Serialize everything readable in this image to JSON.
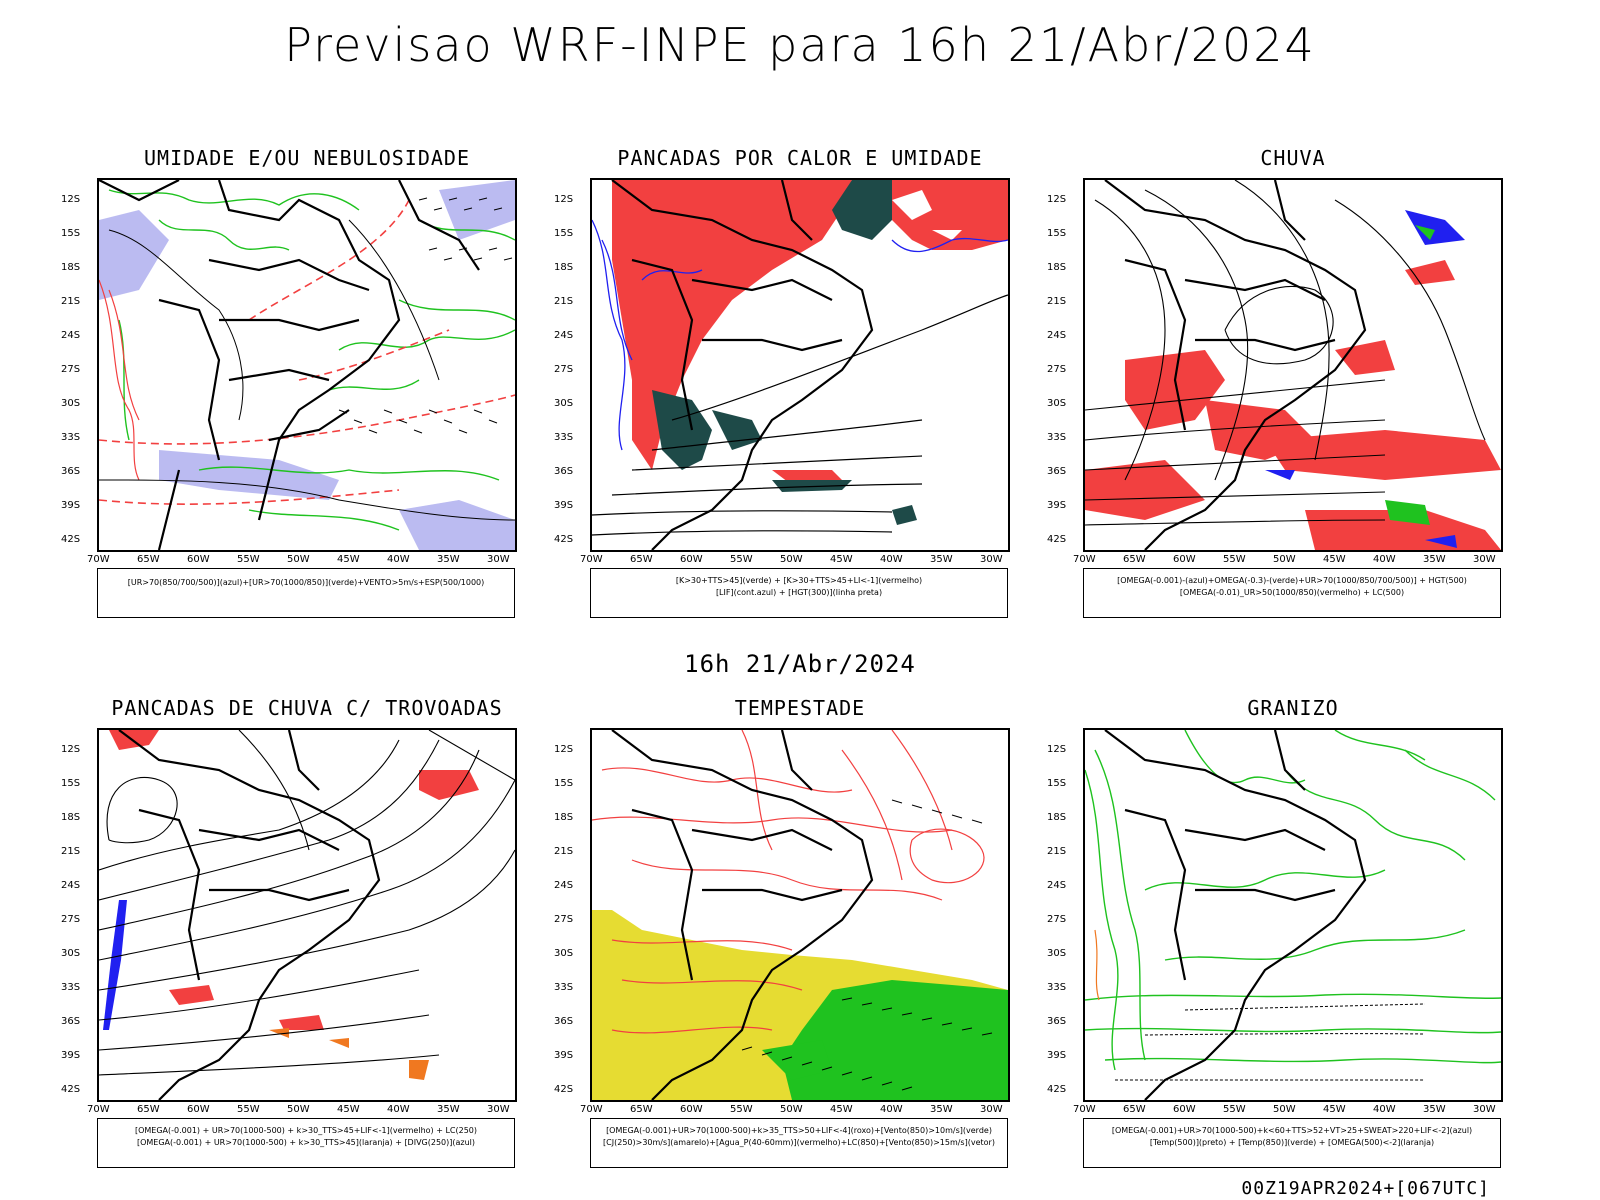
{
  "title": "Previsao WRF-INPE  para 16h 21/Abr/2024",
  "mid_date": "16h 21/Abr/2024",
  "footer_stamp": "00Z19APR2024+[067UTC]",
  "lat_labels": [
    "12S",
    "15S",
    "18S",
    "21S",
    "24S",
    "27S",
    "30S",
    "33S",
    "36S",
    "39S",
    "42S"
  ],
  "lon_labels": [
    "70W",
    "65W",
    "60W",
    "55W",
    "50W",
    "45W",
    "40W",
    "35W",
    "30W"
  ],
  "panels": [
    {
      "title": "UMIDADE E/OU NEBULOSIDADE",
      "legend": [
        "[UR>70(850/700/500)](azul)+[UR>70(1000/850)](verde)+VENTO>5m/s+ESP(500/1000)"
      ]
    },
    {
      "title": "PANCADAS POR CALOR E UMIDADE",
      "legend": [
        "[K>30+TTS>45](verde) + [K>30+TTS>45+LI<-1](vermelho)",
        "[LIF](cont.azul) + [HGT(300)](linha preta)"
      ]
    },
    {
      "title": "CHUVA",
      "legend": [
        "[OMEGA(-0.001)-(azul)+OMEGA(-0.3)-(verde)+UR>70(1000/850/700/500)] + HGT(500)",
        "[OMEGA(-0.01)_UR>50(1000/850)(vermelho) + LC(500)"
      ]
    },
    {
      "title": "PANCADAS DE CHUVA C/ TROVOADAS",
      "legend": [
        "[OMEGA(-0.001) + UR>70(1000-500) + k>30_TTS>45+LIF<-1](vermelho) + LC(250)",
        "[OMEGA(-0.001) + UR>70(1000-500) + k>30_TTS>45](laranja) + [DIVG(250)](azul)"
      ]
    },
    {
      "title": "TEMPESTADE",
      "legend": [
        "[OMEGA(-0.001)+UR>70(1000-500)+k>35_TTS>50+LIF<-4](roxo)+[Vento(850)>10m/s](verde)",
        "[CJ(250)>30m/s](amarelo)+[Agua_P(40-60mm)](vermelho)+LC(850)+[Vento(850)>15m/s](vetor)"
      ]
    },
    {
      "title": "GRANIZO",
      "legend": [
        "[OMEGA(-0.001)+UR>70(1000-500)+k<60+TTS>52+VT>25+SWEAT>220+LIF<-2](azul)",
        "[Temp(500)](preto) + [Temp(850)](verde) + [OMEGA(500)<-2](laranja)"
      ]
    }
  ],
  "colors": {
    "red": "#f24040",
    "green": "#1fc21f",
    "blue": "#2020f0",
    "lavender": "#b4b4f0",
    "darkteal": "#1e4a48",
    "yellow": "#e6dc32",
    "orange": "#f07820"
  }
}
